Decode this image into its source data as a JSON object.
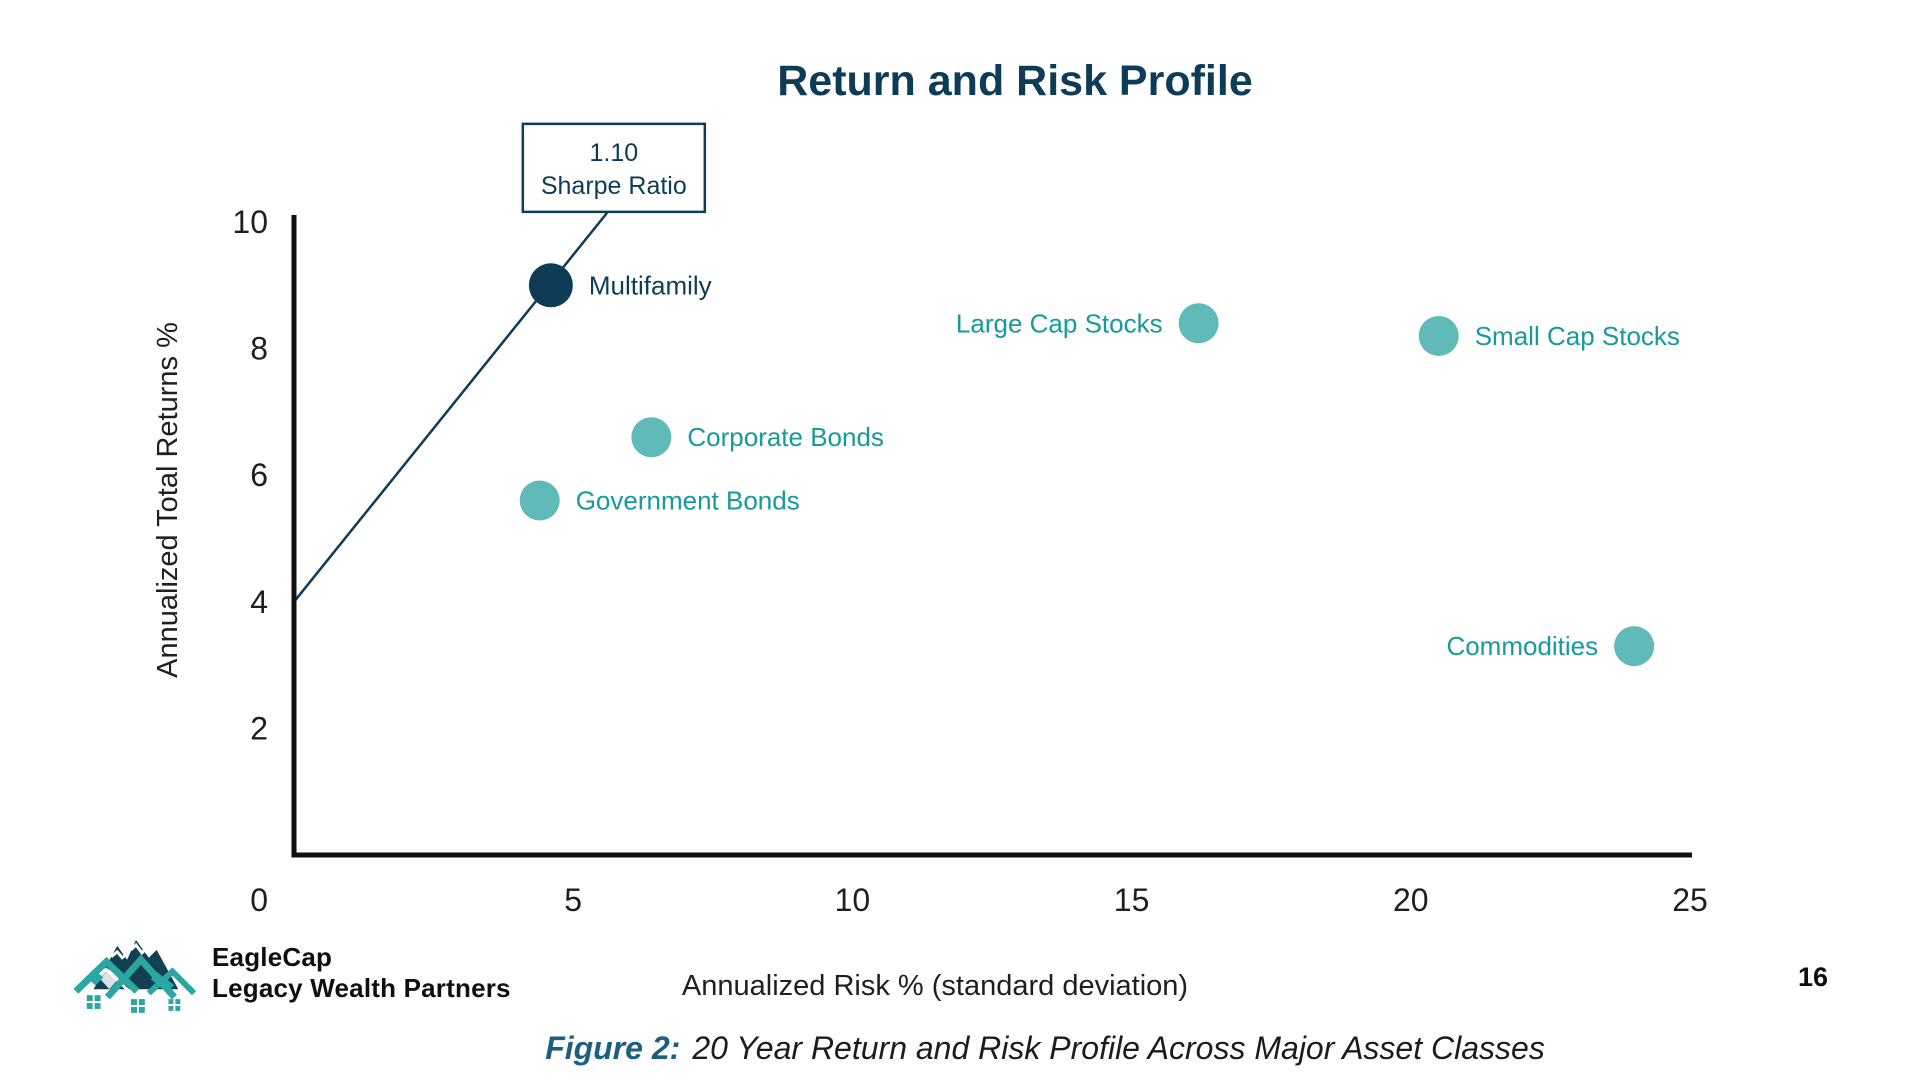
{
  "title": "Return and Risk Profile",
  "colors": {
    "navy": "#0e3c56",
    "teal_dot": "#5fbab8",
    "teal_text": "#169a9c",
    "axis": "#111111",
    "caption_accent": "#1d5f7e"
  },
  "chart_data": {
    "type": "scatter",
    "title": "Return and Risk Profile",
    "xlabel": "Annualized Risk % (standard deviation)",
    "ylabel": "Annualized Total Returns %",
    "xlim": [
      0,
      25
    ],
    "ylim": [
      0,
      10
    ],
    "xticks": [
      5,
      10,
      15,
      20,
      25
    ],
    "yticks": [
      0,
      2,
      4,
      6,
      8,
      10
    ],
    "grid": false,
    "points": [
      {
        "name": "Multifamily",
        "risk": 4.6,
        "return": 9.0,
        "color": "#0e3c56",
        "label_color": "#0e3c56",
        "label_side": "right",
        "radius": 22
      },
      {
        "name": "Large Cap Stocks",
        "risk": 16.2,
        "return": 8.4,
        "color": "#5fbab8",
        "label_color": "#169a9c",
        "label_side": "left",
        "radius": 20
      },
      {
        "name": "Small Cap Stocks",
        "risk": 20.5,
        "return": 8.2,
        "color": "#5fbab8",
        "label_color": "#169a9c",
        "label_side": "right",
        "radius": 20
      },
      {
        "name": "Corporate Bonds",
        "risk": 6.4,
        "return": 6.6,
        "color": "#5fbab8",
        "label_color": "#169a9c",
        "label_side": "right",
        "radius": 20
      },
      {
        "name": "Government Bonds",
        "risk": 4.4,
        "return": 5.6,
        "color": "#5fbab8",
        "label_color": "#169a9c",
        "label_side": "right",
        "radius": 20
      },
      {
        "name": "Commodities",
        "risk": 24.0,
        "return": 3.3,
        "color": "#5fbab8",
        "label_color": "#169a9c",
        "label_side": "left",
        "radius": 20
      }
    ],
    "annotation": {
      "value": "1.10",
      "label": "Sharpe Ratio",
      "line": {
        "x0": 0,
        "y0": 4.0,
        "x1": 5.62,
        "y1": 10.16
      }
    }
  },
  "footer": {
    "brand_line1": "EagleCap",
    "brand_line2": "Legacy Wealth Partners",
    "page_number": "16"
  },
  "caption": {
    "label": "Figure 2:",
    "text": "20 Year Return and Risk Profile Across Major Asset Classes"
  }
}
